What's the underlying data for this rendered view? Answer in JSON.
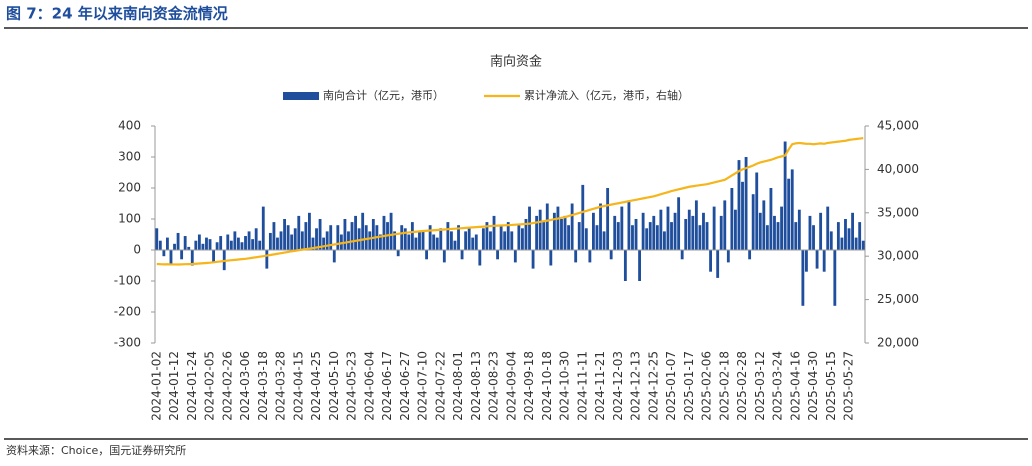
{
  "header_title": "图 7：24 年以来南向资金流情况",
  "source": "资料来源：Choice，国元证券研究所",
  "chart_data": {
    "type": "bar-line",
    "title": "南向资金",
    "categories": [
      "2024-01-02",
      null,
      null,
      null,
      null,
      "2024-01-12",
      null,
      null,
      null,
      null,
      "2024-01-24",
      null,
      null,
      null,
      null,
      "2024-02-05",
      null,
      null,
      null,
      null,
      "2024-02-26",
      null,
      null,
      null,
      null,
      "2024-03-06",
      null,
      null,
      null,
      null,
      "2024-03-18",
      null,
      null,
      null,
      null,
      "2024-03-28",
      null,
      null,
      null,
      null,
      "2024-04-15",
      null,
      null,
      null,
      null,
      "2024-04-25",
      null,
      null,
      null,
      null,
      "2024-05-10",
      null,
      null,
      null,
      null,
      "2024-05-23",
      null,
      null,
      null,
      null,
      "2024-06-04",
      null,
      null,
      null,
      null,
      "2024-06-17",
      null,
      null,
      null,
      null,
      "2024-06-27",
      null,
      null,
      null,
      null,
      "2024-07-10",
      null,
      null,
      null,
      null,
      "2024-07-22",
      null,
      null,
      null,
      null,
      "2024-08-01",
      null,
      null,
      null,
      null,
      "2024-08-13",
      null,
      null,
      null,
      null,
      "2024-08-23",
      null,
      null,
      null,
      null,
      "2024-09-04",
      null,
      null,
      null,
      null,
      "2024-09-18",
      null,
      null,
      null,
      null,
      "2024-10-18",
      null,
      null,
      null,
      null,
      "2024-10-30",
      null,
      null,
      null,
      null,
      "2024-11-11",
      null,
      null,
      null,
      null,
      "2024-11-21",
      null,
      null,
      null,
      null,
      "2024-12-03",
      null,
      null,
      null,
      null,
      "2024-12-13",
      null,
      null,
      null,
      null,
      "2024-12-25",
      null,
      null,
      null,
      null,
      "2025-01-07",
      null,
      null,
      null,
      null,
      "2025-01-17",
      null,
      null,
      null,
      null,
      "2025-02-06",
      null,
      null,
      null,
      null,
      "2025-02-18",
      null,
      null,
      null,
      null,
      "2025-02-28",
      null,
      null,
      null,
      null,
      "2025-03-12",
      null,
      null,
      null,
      null,
      "2025-03-24",
      null,
      null,
      null,
      null,
      "2025-04-16",
      null,
      null,
      null,
      null,
      "2025-04-30",
      null,
      null,
      null,
      null,
      "2025-05-15",
      null,
      null,
      null,
      null,
      "2025-05-27",
      null,
      null,
      null,
      null
    ],
    "series": [
      {
        "name": "南向合计（亿元，港币）",
        "kind": "bar",
        "color": "#1f4e9c",
        "values": [
          70,
          30,
          -20,
          40,
          -50,
          20,
          55,
          -30,
          45,
          10,
          -50,
          30,
          50,
          20,
          40,
          35,
          -40,
          25,
          45,
          -65,
          50,
          30,
          60,
          40,
          25,
          45,
          60,
          35,
          70,
          30,
          140,
          -60,
          55,
          90,
          40,
          60,
          100,
          80,
          50,
          70,
          110,
          60,
          90,
          120,
          40,
          70,
          100,
          40,
          60,
          80,
          -40,
          80,
          50,
          100,
          60,
          90,
          110,
          70,
          120,
          80,
          60,
          100,
          80,
          50,
          110,
          90,
          120,
          60,
          -20,
          80,
          70,
          50,
          90,
          40,
          60,
          60,
          -30,
          80,
          50,
          40,
          70,
          -40,
          90,
          60,
          30,
          80,
          -30,
          60,
          70,
          40,
          50,
          -50,
          70,
          90,
          60,
          110,
          -30,
          80,
          60,
          90,
          60,
          -40,
          80,
          70,
          100,
          140,
          -60,
          110,
          130,
          90,
          150,
          -50,
          120,
          140,
          100,
          110,
          80,
          150,
          -40,
          90,
          210,
          70,
          -40,
          120,
          80,
          150,
          60,
          200,
          -30,
          110,
          90,
          140,
          -100,
          160,
          80,
          100,
          -100,
          120,
          70,
          90,
          110,
          80,
          130,
          60,
          140,
          90,
          120,
          170,
          -30,
          100,
          130,
          110,
          160,
          80,
          120,
          90,
          -70,
          140,
          -90,
          110,
          160,
          -40,
          200,
          130,
          290,
          220,
          300,
          -30,
          180,
          250,
          120,
          160,
          80,
          200,
          110,
          90,
          140,
          350,
          230,
          260,
          90,
          130,
          -180,
          -70,
          110,
          80,
          -60,
          120,
          -70,
          140,
          60,
          -180,
          90,
          40,
          100,
          70,
          120,
          40,
          90,
          30
        ]
      },
      {
        "name": "累计净流入（亿元，港币，右轴）",
        "kind": "line",
        "axis": "y2",
        "color": "#f5b51b",
        "values": [
          29100,
          29080,
          29060,
          29070,
          29050,
          29050,
          29040,
          29060,
          29080,
          29090,
          29100,
          29130,
          29160,
          29190,
          29220,
          29250,
          29300,
          29350,
          29400,
          29450,
          29500,
          29540,
          29580,
          29620,
          29660,
          29700,
          29760,
          29820,
          29880,
          29940,
          30000,
          30070,
          30140,
          30210,
          30280,
          30350,
          30420,
          30490,
          30560,
          30630,
          30700,
          30760,
          30820,
          30880,
          30940,
          31000,
          31070,
          31140,
          31210,
          31280,
          31350,
          31420,
          31490,
          31560,
          31630,
          31700,
          31770,
          31840,
          31910,
          31980,
          32050,
          32120,
          32190,
          32260,
          32330,
          32400,
          32460,
          32520,
          32580,
          32640,
          32700,
          32740,
          32780,
          32820,
          32860,
          32900,
          32930,
          32960,
          32990,
          33020,
          33050,
          33080,
          33110,
          33140,
          33170,
          33200,
          33230,
          33260,
          33290,
          33320,
          33350,
          33380,
          33410,
          33440,
          33470,
          33500,
          33520,
          33540,
          33560,
          33580,
          33600,
          33630,
          33660,
          33690,
          33720,
          33750,
          33820,
          33890,
          33960,
          34030,
          34100,
          34180,
          34260,
          34340,
          34420,
          34500,
          34620,
          34740,
          34860,
          34980,
          35100,
          35220,
          35340,
          35460,
          35580,
          35700,
          35780,
          35860,
          35940,
          36020,
          36100,
          36180,
          36260,
          36340,
          36420,
          36500,
          36580,
          36660,
          36740,
          36820,
          36900,
          37020,
          37140,
          37260,
          37380,
          37500,
          37600,
          37700,
          37800,
          37900,
          38000,
          38060,
          38120,
          38180,
          38240,
          38300,
          38400,
          38500,
          38600,
          38700,
          38800,
          39050,
          39300,
          39550,
          39800,
          40000,
          40150,
          40300,
          40450,
          40650,
          40800,
          40900,
          41000,
          41100,
          41250,
          41400,
          41500,
          41600,
          42300,
          42900,
          43000,
          43050,
          43000,
          42950,
          42950,
          42900,
          42950,
          43000,
          42950,
          43050,
          43100,
          43150,
          43200,
          43250,
          43300,
          43400,
          43450,
          43500,
          43550,
          43600
        ]
      }
    ],
    "ylim": [
      -300,
      400
    ],
    "yticks": [
      -300,
      -200,
      -100,
      0,
      100,
      200,
      300,
      400
    ],
    "y2lim": [
      20000,
      45000
    ],
    "y2ticks": [
      {
        "value": 20000,
        "label": "20,000"
      },
      {
        "value": 25000,
        "label": "25,000"
      },
      {
        "value": 30000,
        "label": "30,000"
      },
      {
        "value": 35000,
        "label": "35,000"
      },
      {
        "value": 40000,
        "label": "40,000"
      },
      {
        "value": 45000,
        "label": "45,000"
      }
    ],
    "legend": "top"
  }
}
